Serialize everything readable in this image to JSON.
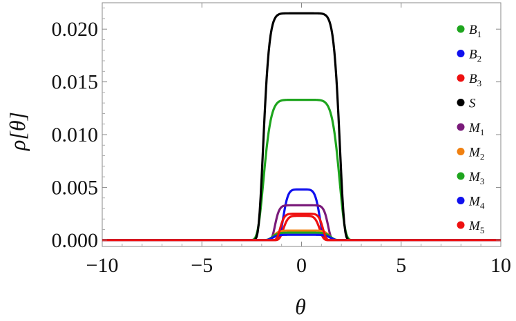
{
  "chart_data": {
    "type": "line",
    "xlabel": "θ",
    "ylabel": "ρ[θ]",
    "xlim": [
      -10,
      10
    ],
    "ylim": [
      -0.0006,
      0.0225
    ],
    "xticks": [
      -10,
      -5,
      0,
      5,
      10
    ],
    "xtick_labels": [
      "−10",
      "−5",
      "0",
      "5",
      "10"
    ],
    "yticks": [
      0.0,
      0.005,
      0.01,
      0.015,
      0.02
    ],
    "ytick_labels": [
      "0.000",
      "0.005",
      "0.010",
      "0.015",
      "0.020"
    ],
    "grid": false,
    "legend_position": "right",
    "series": [
      {
        "name": "B",
        "sub": "1",
        "color": "#1ea51e",
        "peak": 0.0133,
        "halfwidth": 1.95,
        "sharpness": 4
      },
      {
        "name": "B",
        "sub": "2",
        "color": "#1010ee",
        "peak": 0.0048,
        "halfwidth": 0.95,
        "sharpness": 3
      },
      {
        "name": "B",
        "sub": "3",
        "color": "#ee1010",
        "peak": 0.0023,
        "halfwidth": 0.95,
        "sharpness": 3
      },
      {
        "name": "S",
        "sub": "",
        "color": "#000000",
        "peak": 0.0215,
        "halfwidth": 1.95,
        "sharpness": 5
      },
      {
        "name": "M",
        "sub": "1",
        "color": "#7a1a7a",
        "peak": 0.0033,
        "halfwidth": 1.35,
        "sharpness": 5
      },
      {
        "name": "M",
        "sub": "2",
        "color": "#f08010",
        "peak": 0.0009,
        "halfwidth": 1.45,
        "sharpness": 4
      },
      {
        "name": "M",
        "sub": "3",
        "color": "#1ea51e",
        "peak": 0.0007,
        "halfwidth": 1.5,
        "sharpness": 4
      },
      {
        "name": "M",
        "sub": "4",
        "color": "#1010ee",
        "peak": 0.0005,
        "halfwidth": 1.5,
        "sharpness": 4
      },
      {
        "name": "M",
        "sub": "5",
        "color": "#ee1010",
        "peak": 0.0025,
        "halfwidth": 1.1,
        "sharpness": 4
      }
    ]
  }
}
